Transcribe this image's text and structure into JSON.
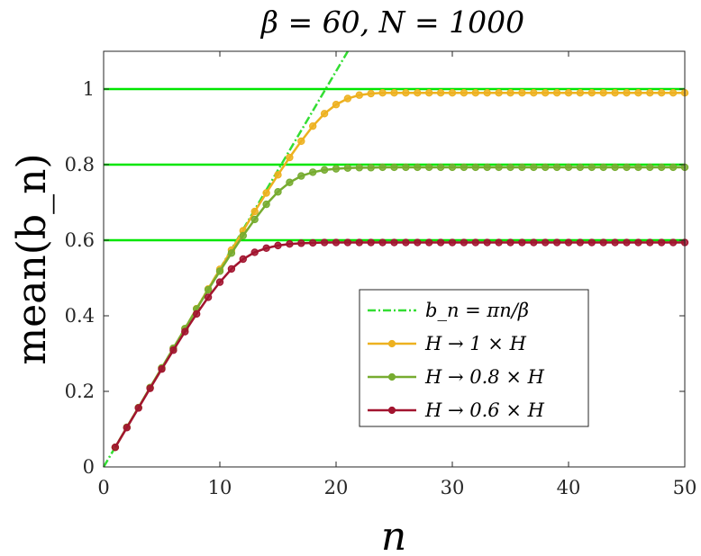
{
  "chart_data": {
    "type": "line",
    "title": "β = 60, N = 1000",
    "xlabel": "n",
    "ylabel": "mean(b_n)",
    "xlim": [
      0,
      50
    ],
    "ylim": [
      0,
      1.1
    ],
    "xticks": [
      0,
      10,
      20,
      30,
      40,
      50
    ],
    "xtick_labels": [
      "0",
      "10",
      "20",
      "30",
      "40",
      "50"
    ],
    "yticks": [
      0,
      0.2,
      0.4,
      0.6,
      0.8,
      1.0
    ],
    "ytick_labels": [
      "0",
      "0.2",
      "0.4",
      "0.6",
      "0.8",
      "1"
    ],
    "grid": false,
    "legend_position": "lower-right-center",
    "hlines": [
      {
        "y": 1.0,
        "color": "#00e600"
      },
      {
        "y": 0.8,
        "color": "#00e600"
      },
      {
        "y": 0.6,
        "color": "#00e600"
      }
    ],
    "reference_line": {
      "name": "b_n = πn/β",
      "slope": 0.05236,
      "color": "#33dd33",
      "style": "dash-dot"
    },
    "x": [
      1,
      2,
      3,
      4,
      5,
      6,
      7,
      8,
      9,
      10,
      11,
      12,
      13,
      14,
      15,
      16,
      17,
      18,
      19,
      20,
      21,
      22,
      23,
      24,
      25,
      26,
      27,
      28,
      29,
      30,
      31,
      32,
      33,
      34,
      35,
      36,
      37,
      38,
      39,
      40,
      41,
      42,
      43,
      44,
      45,
      46,
      47,
      48,
      49,
      50
    ],
    "series": [
      {
        "name": "H → 1 × H",
        "color": "#edb120",
        "values": [
          0.052,
          0.105,
          0.157,
          0.21,
          0.262,
          0.314,
          0.366,
          0.419,
          0.471,
          0.523,
          0.574,
          0.625,
          0.676,
          0.725,
          0.773,
          0.819,
          0.862,
          0.902,
          0.935,
          0.959,
          0.975,
          0.984,
          0.988,
          0.99,
          0.99,
          0.99,
          0.99,
          0.99,
          0.99,
          0.99,
          0.99,
          0.99,
          0.99,
          0.99,
          0.99,
          0.99,
          0.99,
          0.99,
          0.99,
          0.99,
          0.99,
          0.99,
          0.99,
          0.99,
          0.99,
          0.99,
          0.99,
          0.99,
          0.99,
          0.99
        ]
      },
      {
        "name": "H → 0.8 × H",
        "color": "#77ac30",
        "values": [
          0.052,
          0.105,
          0.157,
          0.21,
          0.262,
          0.314,
          0.366,
          0.418,
          0.469,
          0.518,
          0.566,
          0.612,
          0.655,
          0.695,
          0.728,
          0.753,
          0.77,
          0.78,
          0.786,
          0.789,
          0.791,
          0.792,
          0.792,
          0.793,
          0.793,
          0.793,
          0.793,
          0.793,
          0.793,
          0.793,
          0.793,
          0.793,
          0.793,
          0.793,
          0.793,
          0.793,
          0.793,
          0.793,
          0.793,
          0.793,
          0.793,
          0.793,
          0.793,
          0.793,
          0.793,
          0.793,
          0.793,
          0.793,
          0.793,
          0.793
        ]
      },
      {
        "name": "H → 0.6 × H",
        "color": "#a2142f",
        "values": [
          0.052,
          0.104,
          0.156,
          0.208,
          0.259,
          0.309,
          0.358,
          0.405,
          0.449,
          0.489,
          0.524,
          0.55,
          0.568,
          0.579,
          0.586,
          0.59,
          0.592,
          0.593,
          0.594,
          0.594,
          0.594,
          0.594,
          0.594,
          0.594,
          0.594,
          0.594,
          0.594,
          0.594,
          0.594,
          0.594,
          0.594,
          0.594,
          0.594,
          0.594,
          0.594,
          0.594,
          0.594,
          0.594,
          0.594,
          0.594,
          0.594,
          0.594,
          0.594,
          0.594,
          0.594,
          0.594,
          0.594,
          0.594,
          0.594,
          0.594
        ]
      }
    ]
  }
}
